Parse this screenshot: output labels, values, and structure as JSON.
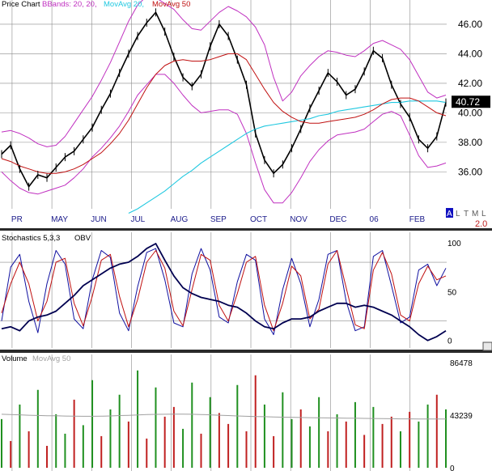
{
  "legends": {
    "price": [
      {
        "label": "Price Chart",
        "color": "#000000"
      },
      {
        "label": "BBands: 20, 20,",
        "color": "#c030c0"
      },
      {
        "label": "MovAvg 20,",
        "color": "#20c8e0"
      },
      {
        "label": "MovAvg 50",
        "color": "#c01010"
      }
    ],
    "stoch": [
      {
        "label": "Stochastics 5,3,3",
        "color": "#000000"
      },
      {
        "label": "OBV",
        "color": "#000000"
      }
    ],
    "volume": [
      {
        "label": "Volume",
        "color": "#000000"
      },
      {
        "label": "MovAvg 50",
        "color": "#a0a0a0"
      }
    ]
  },
  "colors": {
    "price": "#000000",
    "bbands": "#c030c0",
    "ma_short": "#20c8e0",
    "ma_long": "#c01010",
    "stoch_k": "#1010a0",
    "stoch_d": "#c01010",
    "obv": "#000050",
    "vol_up": "#209020",
    "vol_down": "#c02020",
    "vol_ma": "#a0a0a0",
    "grid": "#8a8a8a",
    "label_box": "#000000"
  },
  "toolbar": {
    "symbols": [
      "A",
      "L",
      "T",
      "M",
      "L"
    ],
    "zoom": "2.0"
  },
  "chart_data": [
    {
      "type": "line",
      "panel": "price",
      "title": "Price Chart",
      "x_labels": [
        "PR",
        "MAY",
        "JUN",
        "JUL",
        "AUG",
        "SEP",
        "OCT",
        "NOV",
        "DEC",
        "06",
        "FEB"
      ],
      "y_ticks": [
        36.0,
        38.0,
        40.0,
        42.0,
        44.0,
        46.0
      ],
      "y_tick_labels": [
        "36.00",
        "38.00",
        "40.00",
        "42.00",
        "44.00",
        "46.00"
      ],
      "ylim": [
        33.5,
        47.2
      ],
      "last_price": 40.72,
      "last_price_label": "40.72",
      "grid": true,
      "series": [
        {
          "name": "Price Chart",
          "key": "price",
          "values": [
            37.2,
            37.8,
            36.2,
            35.0,
            35.8,
            35.6,
            36.3,
            37.0,
            37.4,
            38.2,
            39.0,
            40.2,
            41.3,
            42.7,
            44.0,
            45.2,
            46.1,
            46.8,
            45.5,
            43.8,
            42.4,
            41.8,
            42.6,
            44.5,
            46.0,
            45.2,
            43.6,
            41.9,
            38.6,
            36.8,
            35.9,
            36.5,
            37.6,
            38.9,
            40.3,
            41.5,
            42.7,
            42.1,
            41.2,
            41.6,
            42.8,
            44.2,
            43.7,
            41.9,
            40.6,
            39.7,
            38.2,
            37.6,
            38.4,
            40.7
          ]
        },
        {
          "name": "BBands: 20, 20,",
          "key": "bb_upper",
          "values": [
            38.7,
            38.8,
            38.6,
            38.3,
            37.9,
            37.7,
            37.8,
            38.4,
            39.3,
            40.2,
            41.1,
            42.2,
            43.4,
            44.8,
            46.2,
            47.3,
            47.9,
            47.8,
            47.4,
            47.0,
            46.3,
            45.7,
            45.6,
            46.2,
            46.8,
            47.2,
            46.9,
            46.5,
            45.8,
            44.6,
            42.4,
            40.8,
            41.4,
            42.5,
            43.2,
            43.8,
            44.2,
            44.1,
            43.9,
            43.8,
            44.2,
            44.7,
            44.9,
            44.6,
            44.3,
            43.6,
            42.5,
            41.4,
            41.0,
            41.2
          ]
        },
        {
          "name": "BBands: 20, 20,",
          "key": "bb_lower",
          "values": [
            36.0,
            35.4,
            34.9,
            34.6,
            34.5,
            34.7,
            34.9,
            35.1,
            35.6,
            36.2,
            37.0,
            37.6,
            38.3,
            39.1,
            40.1,
            41.2,
            41.9,
            42.6,
            42.6,
            42.0,
            41.2,
            40.5,
            40.0,
            40.1,
            40.2,
            40.2,
            39.9,
            38.6,
            36.6,
            34.8,
            33.9,
            33.9,
            34.6,
            35.6,
            36.7,
            37.5,
            38.1,
            38.5,
            38.6,
            38.7,
            38.9,
            39.4,
            39.9,
            40.1,
            39.8,
            38.5,
            37.1,
            36.3,
            36.4,
            36.6
          ]
        },
        {
          "name": "MovAvg 20,",
          "key": "ma_short",
          "values": [
            null,
            null,
            null,
            null,
            null,
            null,
            null,
            null,
            null,
            null,
            null,
            null,
            null,
            null,
            33.2,
            33.5,
            33.9,
            34.3,
            34.7,
            35.2,
            35.7,
            36.1,
            36.6,
            37.0,
            37.4,
            37.8,
            38.2,
            38.6,
            38.9,
            39.1,
            39.2,
            39.3,
            39.4,
            39.5,
            39.6,
            39.8,
            39.9,
            40.1,
            40.2,
            40.3,
            40.4,
            40.5,
            40.6,
            40.7,
            40.7,
            40.8,
            40.8,
            40.8,
            40.8,
            40.7
          ]
        },
        {
          "name": "MovAvg 50",
          "key": "ma_long",
          "values": [
            36.9,
            36.7,
            36.4,
            36.2,
            36.0,
            35.9,
            35.9,
            36.0,
            36.2,
            36.5,
            36.9,
            37.3,
            37.9,
            38.6,
            39.5,
            40.6,
            41.7,
            42.6,
            43.2,
            43.5,
            43.6,
            43.5,
            43.5,
            43.6,
            43.8,
            44.0,
            44.0,
            43.6,
            42.6,
            41.6,
            40.7,
            40.1,
            39.7,
            39.4,
            39.3,
            39.3,
            39.4,
            39.5,
            39.6,
            39.7,
            39.9,
            40.2,
            40.6,
            40.9,
            41.0,
            41.0,
            40.8,
            40.4,
            40.0,
            39.8
          ]
        }
      ]
    },
    {
      "type": "line",
      "panel": "stochastics",
      "title": "Stochastics 5,3,3",
      "y_ticks": [
        0,
        50,
        100
      ],
      "y_tick_labels": [
        "0",
        "50",
        "100"
      ],
      "ylim": [
        -6,
        104
      ],
      "series": [
        {
          "name": "Stochastics 5,3,3",
          "key": "stoch_k",
          "values": [
            20,
            75,
            88,
            40,
            8,
            58,
            92,
            78,
            22,
            12,
            62,
            92,
            85,
            28,
            10,
            55,
            90,
            94,
            62,
            18,
            14,
            68,
            94,
            72,
            24,
            18,
            60,
            88,
            82,
            22,
            6,
            52,
            84,
            58,
            14,
            42,
            88,
            92,
            40,
            10,
            14,
            86,
            92,
            56,
            18,
            24,
            72,
            78,
            56,
            74
          ]
        },
        {
          "name": "Stochastics 5,3,3",
          "key": "stoch_d",
          "values": [
            28,
            58,
            80,
            58,
            20,
            40,
            80,
            84,
            38,
            15,
            45,
            82,
            88,
            45,
            14,
            42,
            80,
            92,
            74,
            30,
            15,
            52,
            88,
            82,
            36,
            20,
            48,
            80,
            86,
            36,
            10,
            38,
            76,
            66,
            22,
            32,
            78,
            92,
            54,
            16,
            12,
            72,
            90,
            68,
            26,
            20,
            58,
            76,
            62,
            66
          ]
        },
        {
          "name": "OBV",
          "key": "obv",
          "values": [
            12,
            14,
            10,
            20,
            24,
            26,
            30,
            38,
            46,
            56,
            62,
            68,
            74,
            78,
            80,
            86,
            94,
            99,
            82,
            66,
            54,
            48,
            44,
            42,
            40,
            36,
            34,
            28,
            20,
            14,
            12,
            18,
            22,
            22,
            24,
            30,
            34,
            38,
            38,
            34,
            36,
            34,
            30,
            26,
            20,
            14,
            6,
            0,
            4,
            10
          ]
        }
      ]
    },
    {
      "type": "bar",
      "panel": "volume",
      "title": "Volume",
      "y_ticks": [
        0,
        43239,
        86478
      ],
      "y_tick_labels": [
        "0",
        "43239",
        "86478"
      ],
      "ylim": [
        0,
        86478
      ],
      "series": [
        {
          "name": "Volume",
          "key": "volume",
          "values": [
            40000,
            22000,
            52000,
            30000,
            64000,
            18000,
            44000,
            28000,
            56000,
            35000,
            72000,
            26000,
            48000,
            60000,
            38000,
            80000,
            24000,
            66000,
            42000,
            50000,
            32000,
            70000,
            28000,
            58000,
            45000,
            36000,
            68000,
            30000,
            76000,
            52000,
            26000,
            62000,
            40000,
            48000,
            34000,
            58000,
            30000,
            44000,
            38000,
            54000,
            27000,
            50000,
            36000,
            42000,
            30000,
            46000,
            38000,
            52000,
            60000,
            48000
          ]
        },
        {
          "name": "MovAvg 50",
          "key": "vol_ma",
          "values": [
            44000,
            43800,
            43500,
            43200,
            43000,
            42800,
            42700,
            42500,
            42400,
            42300,
            42300,
            42400,
            42600,
            42900,
            43100,
            43400,
            43700,
            43900,
            44000,
            44100,
            44100,
            44000,
            43800,
            43500,
            43200,
            42900,
            42600,
            42300,
            42100,
            42000,
            41800,
            41600,
            41500,
            41300,
            41200,
            41100,
            41000,
            40900,
            40800,
            40700,
            40600,
            40500,
            40400,
            40300,
            40200,
            40200,
            40100,
            40100,
            40100,
            40100
          ]
        },
        {
          "name": "Volume",
          "key": "volume_up",
          "values": [
            true,
            false,
            true,
            false,
            true,
            false,
            true,
            true,
            false,
            true,
            true,
            false,
            true,
            true,
            false,
            true,
            false,
            true,
            false,
            false,
            true,
            true,
            false,
            true,
            false,
            false,
            true,
            false,
            false,
            true,
            false,
            true,
            true,
            false,
            true,
            true,
            false,
            true,
            false,
            true,
            false,
            true,
            false,
            false,
            true,
            false,
            true,
            true,
            false,
            true
          ]
        }
      ]
    }
  ]
}
